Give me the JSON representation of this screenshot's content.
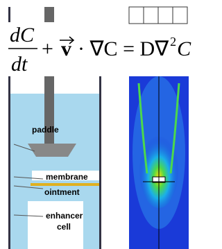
{
  "equation": {
    "numerator": "dC",
    "denominator": "dt",
    "plus": "+",
    "vector": "v",
    "middle": "· ∇C = D∇",
    "superscript": "2",
    "last": "C"
  },
  "labels": {
    "paddle": "paddle",
    "membrane": "membrane",
    "ointment": "ointment",
    "enhancer_cell": [
      "enhancer",
      "cell"
    ]
  }
}
